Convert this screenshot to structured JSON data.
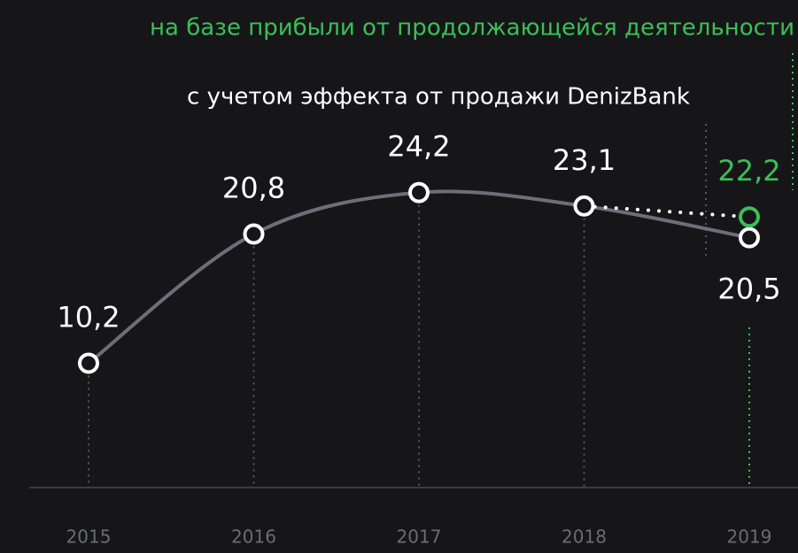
{
  "chart_data": {
    "type": "line",
    "categories": [
      "2015",
      "2016",
      "2017",
      "2018",
      "2019"
    ],
    "series": [
      {
        "name": "с учетом эффекта от продажи DenizBank",
        "color": "#6e6d7a",
        "values": [
          10.2,
          20.8,
          24.2,
          23.1,
          20.5
        ],
        "value_labels": [
          "10,2",
          "20,8",
          "24,2",
          "23,1",
          "20,5"
        ]
      },
      {
        "name": "на базе прибыли от продолжающейся деятельности",
        "color": "#3bbf58",
        "values": [
          null,
          null,
          null,
          23.1,
          22.2
        ],
        "value_labels": [
          null,
          null,
          null,
          null,
          "22,2"
        ]
      }
    ],
    "ylim": [
      0,
      40
    ]
  }
}
